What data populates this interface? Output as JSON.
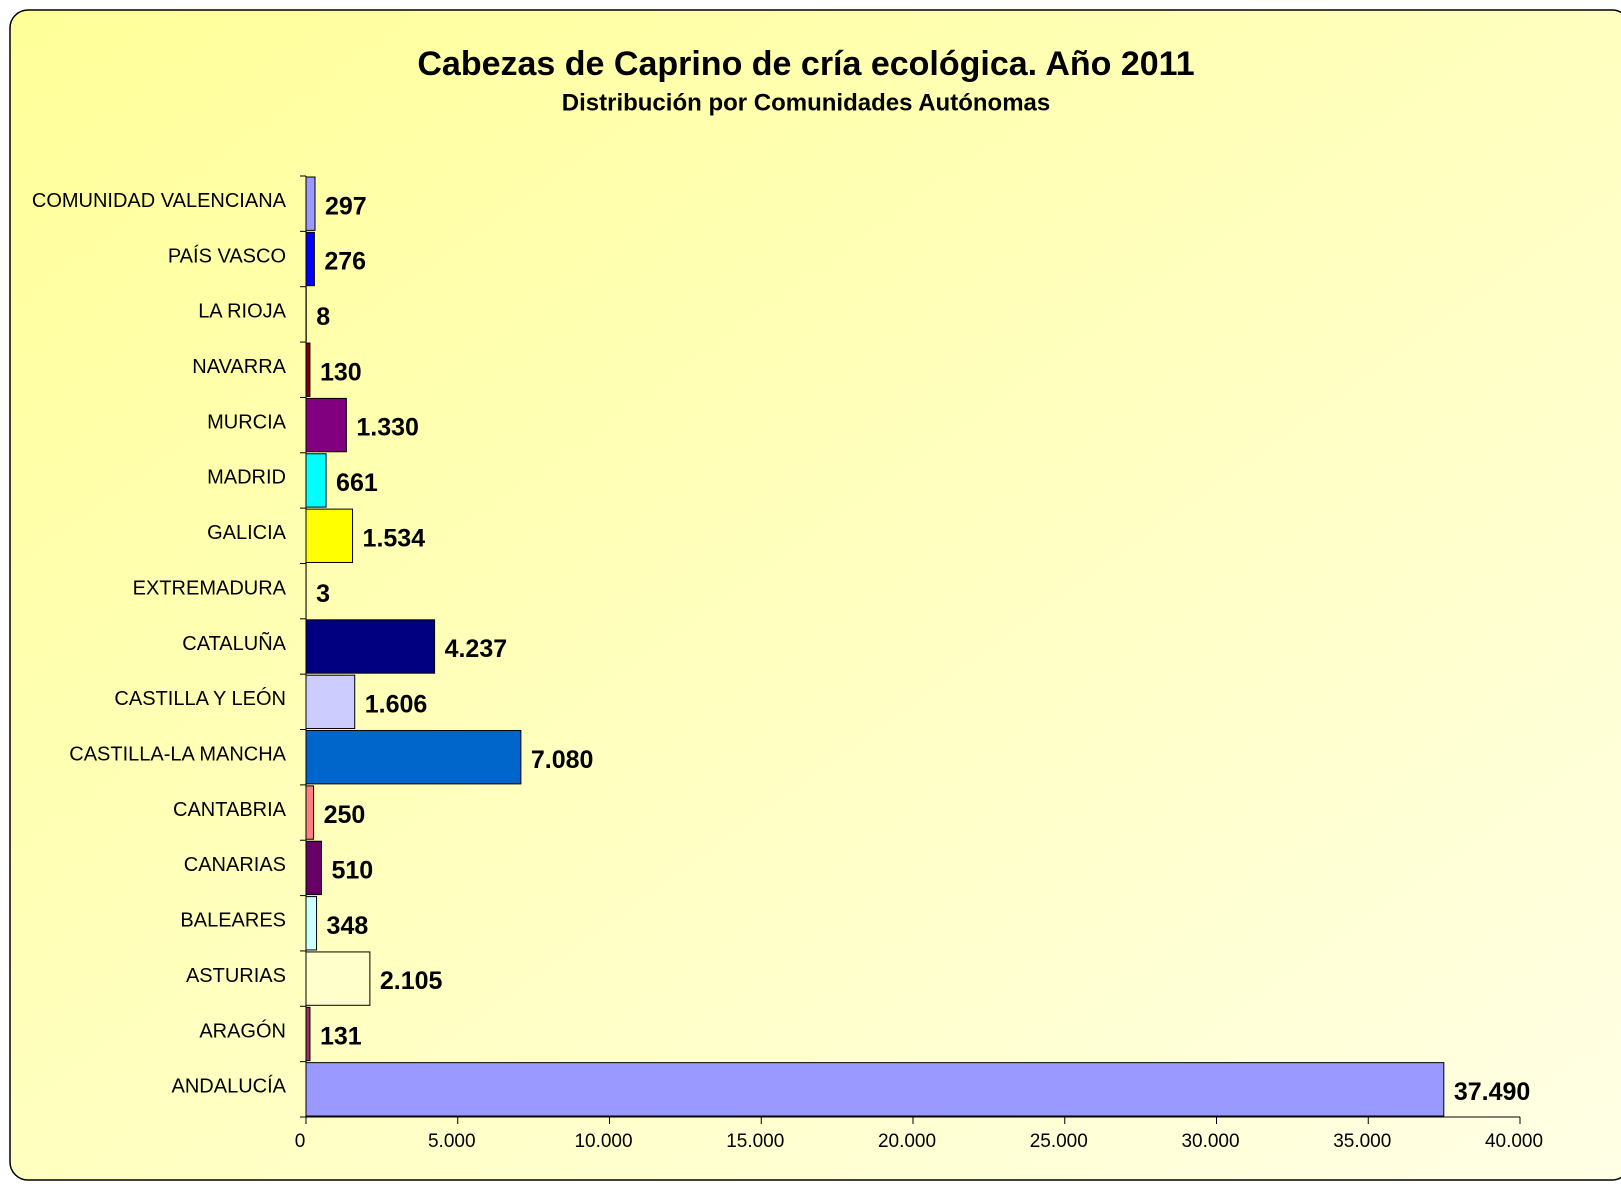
{
  "chart_data": {
    "type": "barh",
    "title": "Cabezas de Caprino de cría ecológica. Año 2011",
    "subtitle": "Distribución por Comunidades Autónomas",
    "categories": [
      "ANDALUCÍA",
      "ARAGÓN",
      "ASTURIAS",
      "BALEARES",
      "CANARIAS",
      "CANTABRIA",
      "CASTILLA-LA MANCHA",
      "CASTILLA Y LEÓN",
      "CATALUÑA",
      "EXTREMADURA",
      "GALICIA",
      "MADRID",
      "MURCIA",
      "NAVARRA",
      "LA RIOJA",
      "PAÍS VASCO",
      "COMUNIDAD VALENCIANA"
    ],
    "values": [
      37490,
      131,
      2105,
      348,
      510,
      250,
      7080,
      1606,
      4237,
      3,
      1534,
      661,
      1330,
      130,
      8,
      276,
      297
    ],
    "value_labels": [
      "37.490",
      "131",
      "2.105",
      "348",
      "510",
      "250",
      "7.080",
      "1.606",
      "4.237",
      "3",
      "1.534",
      "661",
      "1.330",
      "130",
      "8",
      "276",
      "297"
    ],
    "colors": [
      "#9999ff",
      "#993366",
      "#ffffcc",
      "#ccffff",
      "#660066",
      "#ff8080",
      "#0066cc",
      "#ccccff",
      "#000080",
      "#ff00ff",
      "#ffff00",
      "#00ffff",
      "#800080",
      "#800000",
      "#008080",
      "#0000ff",
      "#9999ff"
    ],
    "xlim": [
      0,
      40000
    ],
    "xticks": [
      0,
      {
        "value": 5000,
        "label": "5.000"
      },
      {
        "value": 10000,
        "label": "10.000"
      },
      {
        "value": 15000,
        "label": "15.000"
      },
      {
        "value": 20000,
        "label": "20.000"
      },
      {
        "value": 25000,
        "label": "25.000"
      },
      {
        "value": 30000,
        "label": "30.000"
      },
      {
        "value": 35000,
        "label": "35.000"
      },
      {
        "value": 40000,
        "label": "40.000"
      }
    ],
    "grid": false
  }
}
